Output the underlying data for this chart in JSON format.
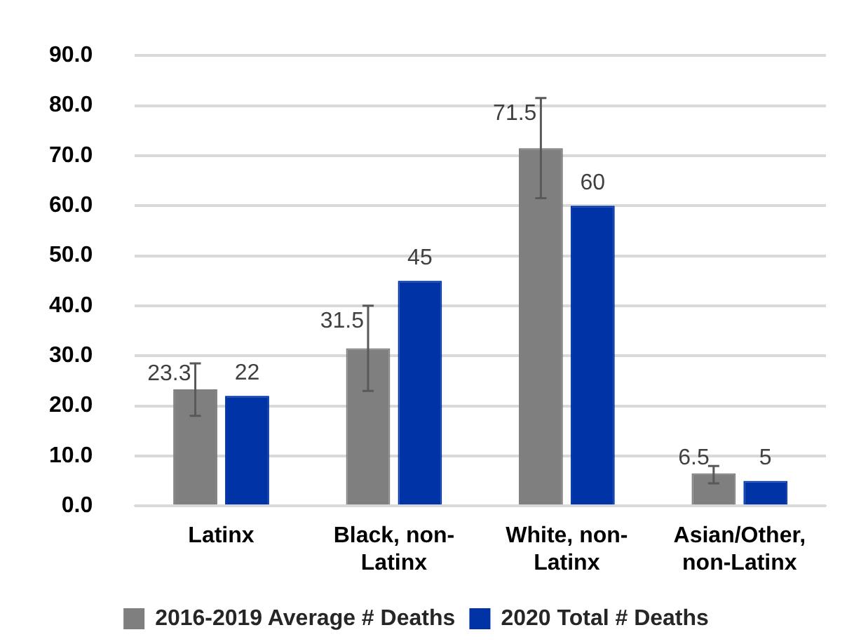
{
  "chart_data": {
    "type": "bar",
    "categories": [
      "Latinx",
      "Black, non-Latinx",
      "White, non-Latinx",
      "Asian/Other, non-Latinx"
    ],
    "series": [
      {
        "name": "2016-2019 Average # Deaths",
        "color": "#7f7f7f",
        "values": [
          23.3,
          31.5,
          71.5,
          6.5
        ],
        "errors": [
          [
            18,
            28.5
          ],
          [
            23,
            40
          ],
          [
            61.5,
            81.5
          ],
          [
            4.5,
            8
          ]
        ]
      },
      {
        "name": "2020 Total # Deaths",
        "color": "#0033a6",
        "values": [
          22,
          45,
          60,
          5
        ]
      }
    ],
    "ylim": [
      0,
      90
    ],
    "yticks": [
      {
        "value": 0,
        "label": "0.0"
      },
      {
        "value": 10,
        "label": "10.0"
      },
      {
        "value": 20,
        "label": "20.0"
      },
      {
        "value": 30,
        "label": "30.0"
      },
      {
        "value": 40,
        "label": "40.0"
      },
      {
        "value": 50,
        "label": "50.0"
      },
      {
        "value": 60,
        "label": "60.0"
      },
      {
        "value": 70,
        "label": "70.0"
      },
      {
        "value": 80,
        "label": "80.0"
      },
      {
        "value": 90,
        "label": "90.0"
      }
    ],
    "grid": "y",
    "legend": "bottom",
    "data_labels": true
  }
}
